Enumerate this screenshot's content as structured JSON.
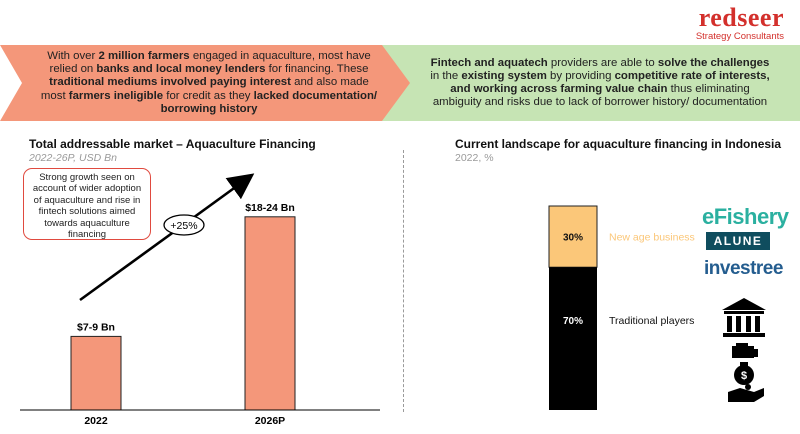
{
  "logo": {
    "brand": "redseer",
    "tagline": "Strategy Consultants"
  },
  "banner_left": {
    "parts": [
      {
        "t": "With over ",
        "b": false
      },
      {
        "t": "2 million farmers",
        "b": true
      },
      {
        "t": " engaged in aquaculture, most have relied on ",
        "b": false
      },
      {
        "t": "banks and local money lenders",
        "b": true
      },
      {
        "t": " for financing. These ",
        "b": false
      },
      {
        "t": "traditional mediums involved paying interest",
        "b": true
      },
      {
        "t": " and also made most ",
        "b": false
      },
      {
        "t": "farmers ineligible",
        "b": true
      },
      {
        "t": " for credit as they ",
        "b": false
      },
      {
        "t": "lacked documentation/ borrowing history",
        "b": true
      }
    ]
  },
  "banner_right": {
    "parts": [
      {
        "t": "Fintech and aquatech",
        "b": true
      },
      {
        "t": " providers are able to ",
        "b": false
      },
      {
        "t": "solve the challenges",
        "b": true
      },
      {
        "t": " in the ",
        "b": false
      },
      {
        "t": "existing system",
        "b": true
      },
      {
        "t": " by providing ",
        "b": false
      },
      {
        "t": "competitive rate of interests, and working across farming value chain",
        "b": true
      },
      {
        "t": " thus eliminating ambiguity and risks due to lack of borrower history/ documentation",
        "b": false
      }
    ]
  },
  "left_section": {
    "title": "Total addressable market – Aquaculture Financing",
    "subtitle": "2022-26P, USD Bn",
    "callout": "Strong growth seen on account of wider adoption of aquaculture and rise in fintech solutions aimed towards aquaculture financing"
  },
  "right_section": {
    "title": "Current landscape for aquaculture financing in Indonesia",
    "subtitle": "2022, %",
    "logos": {
      "efishery": "eFishery",
      "alune": "ALUNE",
      "investree": "investree"
    },
    "icons": [
      "bank-icon",
      "money-hand-icon",
      "money-bag-icon",
      "hand-coin-icon"
    ]
  },
  "colors": {
    "accent_red": "#d3302c",
    "bar_salmon": "#f4977a",
    "banner_green": "#c6e4b4",
    "new_age": "#fbc779",
    "traditional": "#000000"
  },
  "chart_data": [
    {
      "type": "bar",
      "categories": [
        "2022",
        "2026P"
      ],
      "values": [
        8,
        21
      ],
      "data_labels": [
        "$7-9 Bn",
        "$18-24 Bn"
      ],
      "title": "Total addressable market – Aquaculture Financing",
      "subtitle": "2022-26P, USD Bn",
      "ylim": [
        0,
        25
      ],
      "annotation": {
        "growth_label": "+25%"
      },
      "grid": false
    },
    {
      "type": "bar",
      "stacked": true,
      "categories": [
        "2022"
      ],
      "series": [
        {
          "name": "Traditional players",
          "values": [
            70
          ],
          "label": "70%"
        },
        {
          "name": "New age business",
          "values": [
            30
          ],
          "label": "30%"
        }
      ],
      "title": "Current landscape for aquaculture financing in Indonesia",
      "subtitle": "2022, %",
      "ylim": [
        0,
        100
      ],
      "grid": false
    }
  ]
}
